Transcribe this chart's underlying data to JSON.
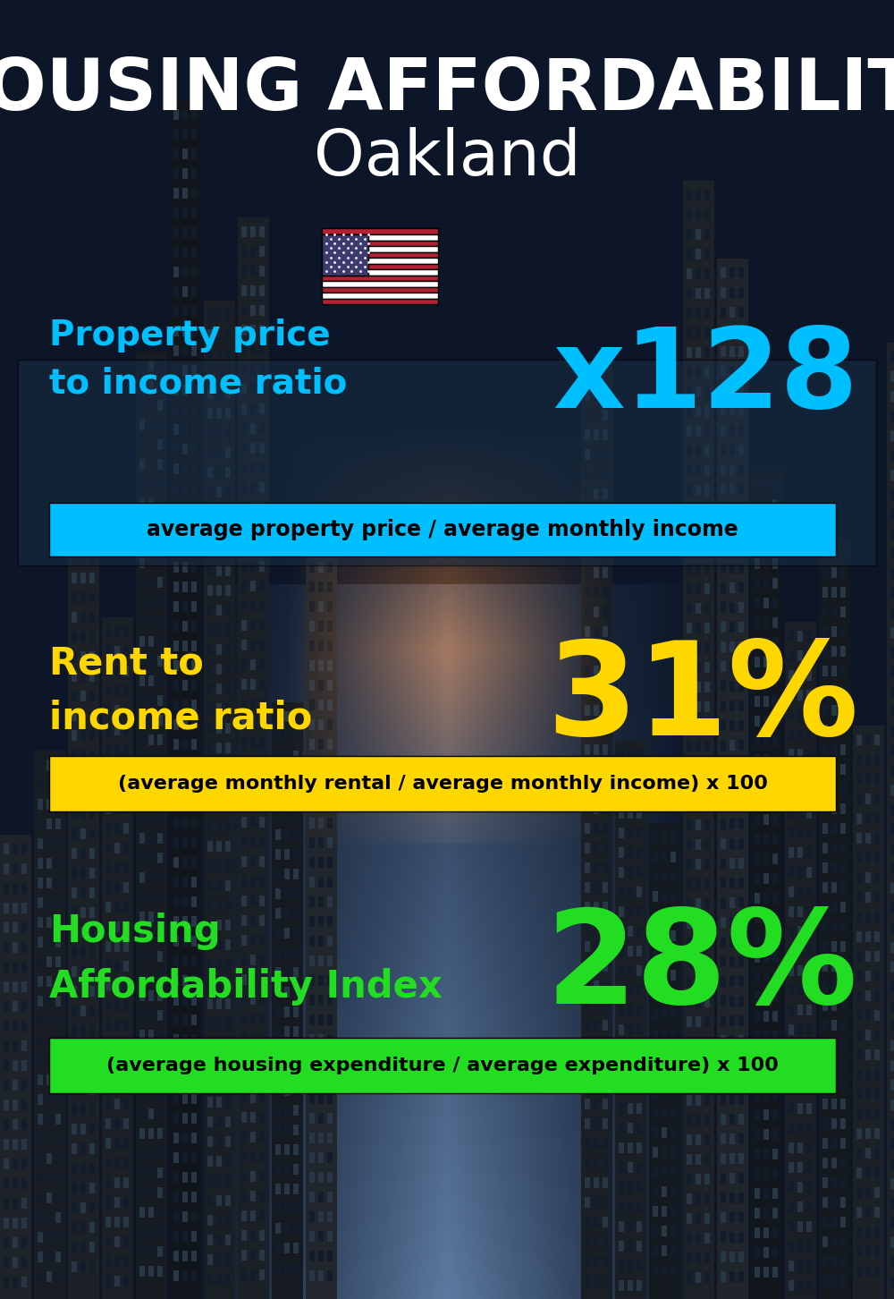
{
  "title_main": "HOUSING AFFORDABILITY",
  "title_sub": "Oakland",
  "bg_color": "#0a1628",
  "section1_label": "Property price\nto income ratio",
  "section1_value": "x128",
  "section1_label_color": "#00bfff",
  "section1_value_color": "#00bfff",
  "section1_formula": "average property price / average monthly income",
  "section1_formula_bg": "#00bfff",
  "section1_formula_color": "#000000",
  "section2_label": "Rent to\nincome ratio",
  "section2_value": "31%",
  "section2_label_color": "#ffd700",
  "section2_value_color": "#ffd700",
  "section2_formula": "(average monthly rental / average monthly income) x 100",
  "section2_formula_bg": "#ffd700",
  "section2_formula_color": "#000000",
  "section3_label": "Housing\nAffordability Index",
  "section3_value": "28%",
  "section3_label_color": "#22dd22",
  "section3_value_color": "#22dd22",
  "section3_formula": "(average housing expenditure / average expenditure) x 100",
  "section3_formula_bg": "#22dd22",
  "section3_formula_color": "#000000"
}
